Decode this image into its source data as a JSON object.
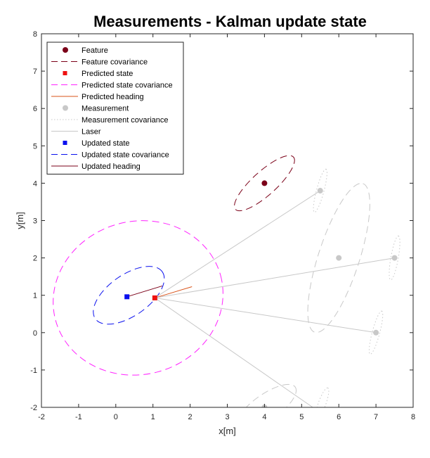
{
  "chart_data": {
    "type": "scatter",
    "title": "Measurements - Kalman update state",
    "xlabel": "x[m]",
    "ylabel": "y[m]",
    "xlim": [
      -2,
      8
    ],
    "ylim": [
      -2,
      8
    ],
    "xticks": [
      -2,
      -1,
      0,
      1,
      2,
      3,
      4,
      5,
      6,
      7,
      8
    ],
    "yticks": [
      -2,
      -1,
      0,
      1,
      2,
      3,
      4,
      5,
      6,
      7,
      8
    ],
    "grid": false,
    "legend_position": "top-left",
    "series": [
      {
        "name": "Feature",
        "kind": "marker",
        "marker": "circle",
        "color": "#7b0018",
        "points": [
          [
            4.0,
            4.0
          ]
        ]
      },
      {
        "name": "Feature covariance",
        "kind": "ellipse",
        "style": "dashed",
        "color": "#7b0018",
        "ellipses": [
          {
            "center": [
              4.0,
              4.0
            ],
            "rx": 1.05,
            "ry": 0.32,
            "angle_deg": 42
          }
        ]
      },
      {
        "name": "Predicted state",
        "kind": "marker",
        "marker": "square",
        "color": "#ee1111",
        "points": [
          [
            1.05,
            0.93
          ]
        ]
      },
      {
        "name": "Predicted state covariance",
        "kind": "ellipse",
        "style": "dashed",
        "color": "#ff22ff",
        "ellipses": [
          {
            "center": [
              0.6,
              0.93
            ],
            "rx": 2.3,
            "ry": 2.05,
            "angle_deg": 15
          }
        ]
      },
      {
        "name": "Predicted heading",
        "kind": "line",
        "style": "solid",
        "color": "#d95319",
        "segments": [
          [
            [
              1.05,
              0.93
            ],
            [
              2.05,
              1.23
            ]
          ]
        ]
      },
      {
        "name": "Measurement",
        "kind": "marker",
        "marker": "circle",
        "color": "#c8c8c8",
        "points": [
          [
            5.5,
            3.8
          ],
          [
            6.0,
            2.0
          ],
          [
            7.5,
            2.0
          ],
          [
            7.0,
            0.0
          ],
          [
            4.0,
            -2.0
          ]
        ]
      },
      {
        "name": "Measurement covariance",
        "kind": "ellipse",
        "style": "dotted",
        "color": "#c8c8c8",
        "ellipses": [
          {
            "center": [
              5.5,
              3.8
            ],
            "rx": 0.6,
            "ry": 0.1,
            "angle_deg": 75
          },
          {
            "center": [
              7.5,
              2.0
            ],
            "rx": 0.6,
            "ry": 0.1,
            "angle_deg": 80
          },
          {
            "center": [
              7.0,
              0.0
            ],
            "rx": 0.6,
            "ry": 0.1,
            "angle_deg": 75
          },
          {
            "center": [
              5.55,
              -1.9
            ],
            "rx": 0.45,
            "ry": 0.1,
            "angle_deg": 70
          }
        ]
      },
      {
        "name": "",
        "kind": "ellipse",
        "style": "dashed",
        "color": "#c8c8c8",
        "ellipses": [
          {
            "center": [
              6.0,
              2.0
            ],
            "rx": 2.1,
            "ry": 0.55,
            "angle_deg": 72
          },
          {
            "center": [
              4.05,
              -2.0
            ],
            "rx": 0.95,
            "ry": 0.35,
            "angle_deg": 35
          }
        ]
      },
      {
        "name": "Laser",
        "kind": "line",
        "style": "solid",
        "color": "#c8c8c8",
        "segments": [
          [
            [
              1.05,
              0.93
            ],
            [
              5.5,
              3.8
            ]
          ],
          [
            [
              1.05,
              0.93
            ],
            [
              7.5,
              2.0
            ]
          ],
          [
            [
              1.05,
              0.93
            ],
            [
              7.0,
              0.0
            ]
          ],
          [
            [
              1.05,
              0.93
            ],
            [
              5.3,
              -2.0
            ]
          ]
        ]
      },
      {
        "name": "Updated state",
        "kind": "marker",
        "marker": "square",
        "color": "#0a10ee",
        "points": [
          [
            0.3,
            0.96
          ]
        ]
      },
      {
        "name": "Updated state covariance",
        "kind": "ellipse",
        "style": "dashed",
        "color": "#0a10ee",
        "ellipses": [
          {
            "center": [
              0.35,
              1.0
            ],
            "rx": 1.1,
            "ry": 0.55,
            "angle_deg": 35
          }
        ]
      },
      {
        "name": "Updated heading",
        "kind": "line",
        "style": "solid",
        "color": "#7b0018",
        "segments": [
          [
            [
              0.3,
              0.96
            ],
            [
              1.25,
              1.25
            ]
          ]
        ]
      }
    ]
  }
}
